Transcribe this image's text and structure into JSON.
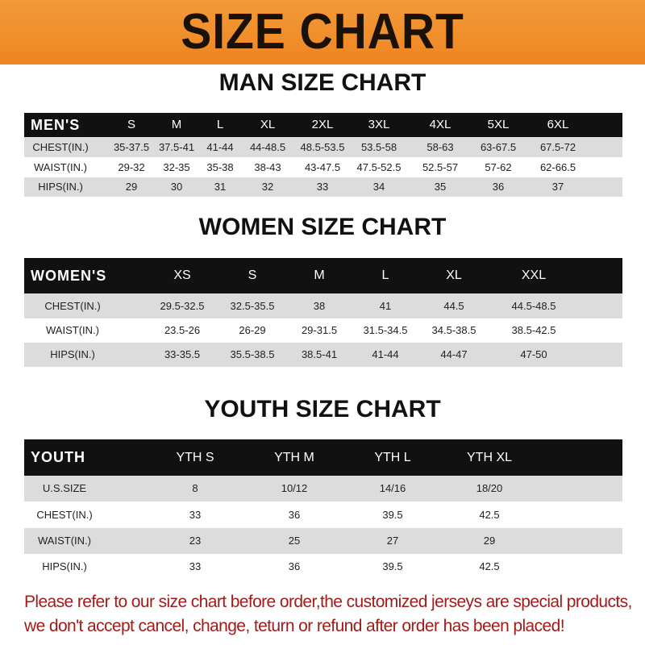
{
  "banner": {
    "title": "SIZE CHART",
    "color": "#ee8520"
  },
  "men": {
    "title": "MAN SIZE CHART",
    "header": [
      "MEN'S",
      "S",
      "M",
      "L",
      "XL",
      "2XL",
      "3XL",
      "4XL",
      "5XL",
      "6XL"
    ],
    "rows": [
      [
        "CHEST(IN.)",
        "35-37.5",
        "37.5-41",
        "41-44",
        "44-48.5",
        "48.5-53.5",
        "53.5-58",
        "58-63",
        "63-67.5",
        "67.5-72"
      ],
      [
        "WAIST(IN.)",
        "29-32",
        "32-35",
        "35-38",
        "38-43",
        "43-47.5",
        "47.5-52.5",
        "52.5-57",
        "57-62",
        "62-66.5"
      ],
      [
        "HIPS(IN.)",
        "29",
        "30",
        "31",
        "32",
        "33",
        "34",
        "35",
        "36",
        "37"
      ]
    ]
  },
  "women": {
    "title": "WOMEN SIZE CHART",
    "header": [
      "WOMEN'S",
      "XS",
      "S",
      "M",
      "L",
      "XL",
      "XXL"
    ],
    "rows": [
      [
        "CHEST(IN.)",
        "29.5-32.5",
        "32.5-35.5",
        "38",
        "41",
        "44.5",
        "44.5-48.5"
      ],
      [
        "WAIST(IN.)",
        "23.5-26",
        "26-29",
        "29-31.5",
        "31.5-34.5",
        "34.5-38.5",
        "38.5-42.5"
      ],
      [
        "HIPS(IN.)",
        "33-35.5",
        "35.5-38.5",
        "38.5-41",
        "41-44",
        "44-47",
        "47-50"
      ]
    ]
  },
  "youth": {
    "title": "YOUTH SIZE CHART",
    "header": [
      "YOUTH",
      "YTH S",
      "YTH M",
      "YTH L",
      "YTH XL"
    ],
    "rows": [
      [
        "U.S.SIZE",
        "8",
        "10/12",
        "14/16",
        "18/20"
      ],
      [
        "CHEST(IN.)",
        "33",
        "36",
        "39.5",
        "42.5"
      ],
      [
        "WAIST(IN.)",
        "23",
        "25",
        "27",
        "29"
      ],
      [
        "HIPS(IN.)",
        "33",
        "36",
        "39.5",
        "42.5"
      ]
    ]
  },
  "notice": {
    "line1": "Please refer to our size chart before order,the customized jerseys are special products,",
    "line2": "we don't accept cancel, change, teturn or refund after order has been placed!",
    "color": "#a01c1c"
  }
}
